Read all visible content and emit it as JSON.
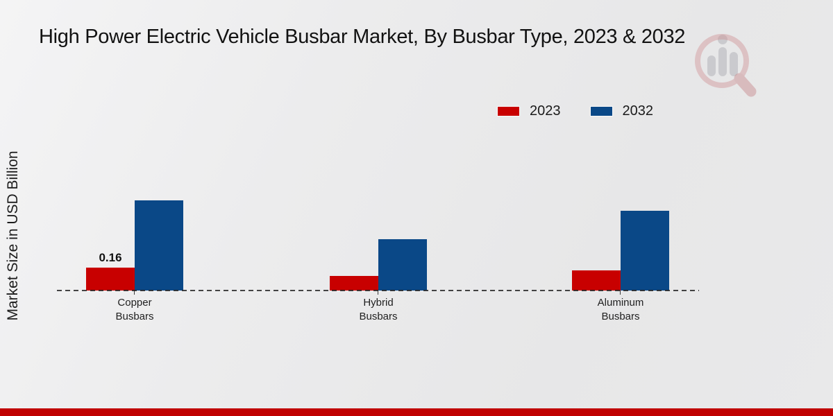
{
  "header": {
    "title": "High Power Electric Vehicle Busbar Market, By Busbar Type, 2023 & 2032"
  },
  "branding": {
    "watermark_icon": "magnifier-bar-chart-logo",
    "accent_red": "#c00000"
  },
  "chart_data": {
    "type": "bar",
    "title": "High Power Electric Vehicle Busbar Market, By Busbar Type, 2023 & 2032",
    "xlabel": "",
    "ylabel": "Market Size in USD Billion",
    "categories": [
      "Copper Busbars",
      "Hybrid Busbars",
      "Aluminum Busbars"
    ],
    "series": [
      {
        "name": "2023",
        "color": "#c80000",
        "values": [
          0.16,
          0.1,
          0.14
        ]
      },
      {
        "name": "2032",
        "color": "#0a4887",
        "values": [
          0.63,
          0.36,
          0.56
        ]
      }
    ],
    "ylim": [
      0,
      0.82
    ],
    "grid": false,
    "legend_position": "top-right",
    "baseline_style": "dashed",
    "data_labels": [
      {
        "series": "2023",
        "category": "Copper Busbars",
        "text": "0.16"
      }
    ]
  }
}
